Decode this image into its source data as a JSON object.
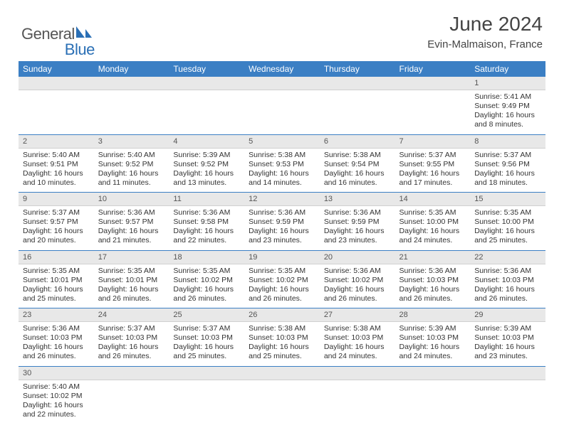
{
  "logo": {
    "text1": "General",
    "text2": "Blue"
  },
  "title": "June 2024",
  "location": "Evin-Malmaison, France",
  "colors": {
    "header_bg": "#3b7fc4",
    "header_text": "#ffffff",
    "daynum_bg": "#e8e8e8",
    "row_divider": "#3b7fc4",
    "logo_gray": "#555555",
    "logo_blue": "#2a6fb5"
  },
  "weekdays": [
    "Sunday",
    "Monday",
    "Tuesday",
    "Wednesday",
    "Thursday",
    "Friday",
    "Saturday"
  ],
  "rows": [
    {
      "nums": [
        "",
        "",
        "",
        "",
        "",
        "",
        "1"
      ],
      "cells": [
        "",
        "",
        "",
        "",
        "",
        "",
        "Sunrise: 5:41 AM\nSunset: 9:49 PM\nDaylight: 16 hours and 8 minutes."
      ]
    },
    {
      "nums": [
        "2",
        "3",
        "4",
        "5",
        "6",
        "7",
        "8"
      ],
      "cells": [
        "Sunrise: 5:40 AM\nSunset: 9:51 PM\nDaylight: 16 hours and 10 minutes.",
        "Sunrise: 5:40 AM\nSunset: 9:52 PM\nDaylight: 16 hours and 11 minutes.",
        "Sunrise: 5:39 AM\nSunset: 9:52 PM\nDaylight: 16 hours and 13 minutes.",
        "Sunrise: 5:38 AM\nSunset: 9:53 PM\nDaylight: 16 hours and 14 minutes.",
        "Sunrise: 5:38 AM\nSunset: 9:54 PM\nDaylight: 16 hours and 16 minutes.",
        "Sunrise: 5:37 AM\nSunset: 9:55 PM\nDaylight: 16 hours and 17 minutes.",
        "Sunrise: 5:37 AM\nSunset: 9:56 PM\nDaylight: 16 hours and 18 minutes."
      ]
    },
    {
      "nums": [
        "9",
        "10",
        "11",
        "12",
        "13",
        "14",
        "15"
      ],
      "cells": [
        "Sunrise: 5:37 AM\nSunset: 9:57 PM\nDaylight: 16 hours and 20 minutes.",
        "Sunrise: 5:36 AM\nSunset: 9:57 PM\nDaylight: 16 hours and 21 minutes.",
        "Sunrise: 5:36 AM\nSunset: 9:58 PM\nDaylight: 16 hours and 22 minutes.",
        "Sunrise: 5:36 AM\nSunset: 9:59 PM\nDaylight: 16 hours and 23 minutes.",
        "Sunrise: 5:36 AM\nSunset: 9:59 PM\nDaylight: 16 hours and 23 minutes.",
        "Sunrise: 5:35 AM\nSunset: 10:00 PM\nDaylight: 16 hours and 24 minutes.",
        "Sunrise: 5:35 AM\nSunset: 10:00 PM\nDaylight: 16 hours and 25 minutes."
      ]
    },
    {
      "nums": [
        "16",
        "17",
        "18",
        "19",
        "20",
        "21",
        "22"
      ],
      "cells": [
        "Sunrise: 5:35 AM\nSunset: 10:01 PM\nDaylight: 16 hours and 25 minutes.",
        "Sunrise: 5:35 AM\nSunset: 10:01 PM\nDaylight: 16 hours and 26 minutes.",
        "Sunrise: 5:35 AM\nSunset: 10:02 PM\nDaylight: 16 hours and 26 minutes.",
        "Sunrise: 5:35 AM\nSunset: 10:02 PM\nDaylight: 16 hours and 26 minutes.",
        "Sunrise: 5:36 AM\nSunset: 10:02 PM\nDaylight: 16 hours and 26 minutes.",
        "Sunrise: 5:36 AM\nSunset: 10:03 PM\nDaylight: 16 hours and 26 minutes.",
        "Sunrise: 5:36 AM\nSunset: 10:03 PM\nDaylight: 16 hours and 26 minutes."
      ]
    },
    {
      "nums": [
        "23",
        "24",
        "25",
        "26",
        "27",
        "28",
        "29"
      ],
      "cells": [
        "Sunrise: 5:36 AM\nSunset: 10:03 PM\nDaylight: 16 hours and 26 minutes.",
        "Sunrise: 5:37 AM\nSunset: 10:03 PM\nDaylight: 16 hours and 26 minutes.",
        "Sunrise: 5:37 AM\nSunset: 10:03 PM\nDaylight: 16 hours and 25 minutes.",
        "Sunrise: 5:38 AM\nSunset: 10:03 PM\nDaylight: 16 hours and 25 minutes.",
        "Sunrise: 5:38 AM\nSunset: 10:03 PM\nDaylight: 16 hours and 24 minutes.",
        "Sunrise: 5:39 AM\nSunset: 10:03 PM\nDaylight: 16 hours and 24 minutes.",
        "Sunrise: 5:39 AM\nSunset: 10:03 PM\nDaylight: 16 hours and 23 minutes."
      ]
    },
    {
      "nums": [
        "30",
        "",
        "",
        "",
        "",
        "",
        ""
      ],
      "cells": [
        "Sunrise: 5:40 AM\nSunset: 10:02 PM\nDaylight: 16 hours and 22 minutes.",
        "",
        "",
        "",
        "",
        "",
        ""
      ],
      "last": true
    }
  ]
}
